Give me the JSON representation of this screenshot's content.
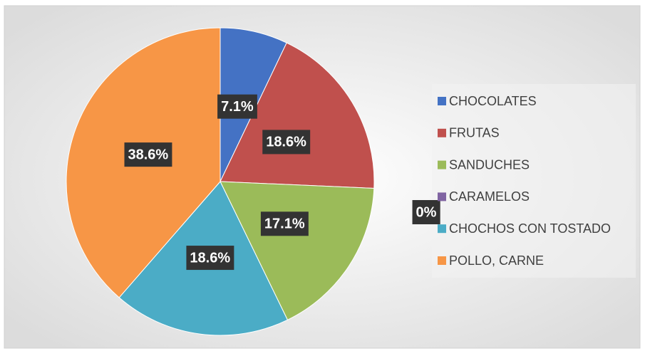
{
  "chart_data": {
    "type": "pie",
    "categories": [
      "CHOCOLATES",
      "FRUTAS",
      "SANDUCHES",
      "CARAMELOS",
      "CHOCHOS CON TOSTADO",
      "POLLO, CARNE"
    ],
    "values": [
      7.1,
      18.6,
      17.1,
      0,
      18.6,
      38.6
    ],
    "value_labels": [
      "7.1%",
      "18.6%",
      "17.1%",
      "0%",
      "18.6%",
      "38.6%"
    ],
    "colors": [
      "#4472c4",
      "#c0504d",
      "#9bbb59",
      "#8064a2",
      "#4bacc6",
      "#f79646"
    ],
    "legend": "right"
  }
}
